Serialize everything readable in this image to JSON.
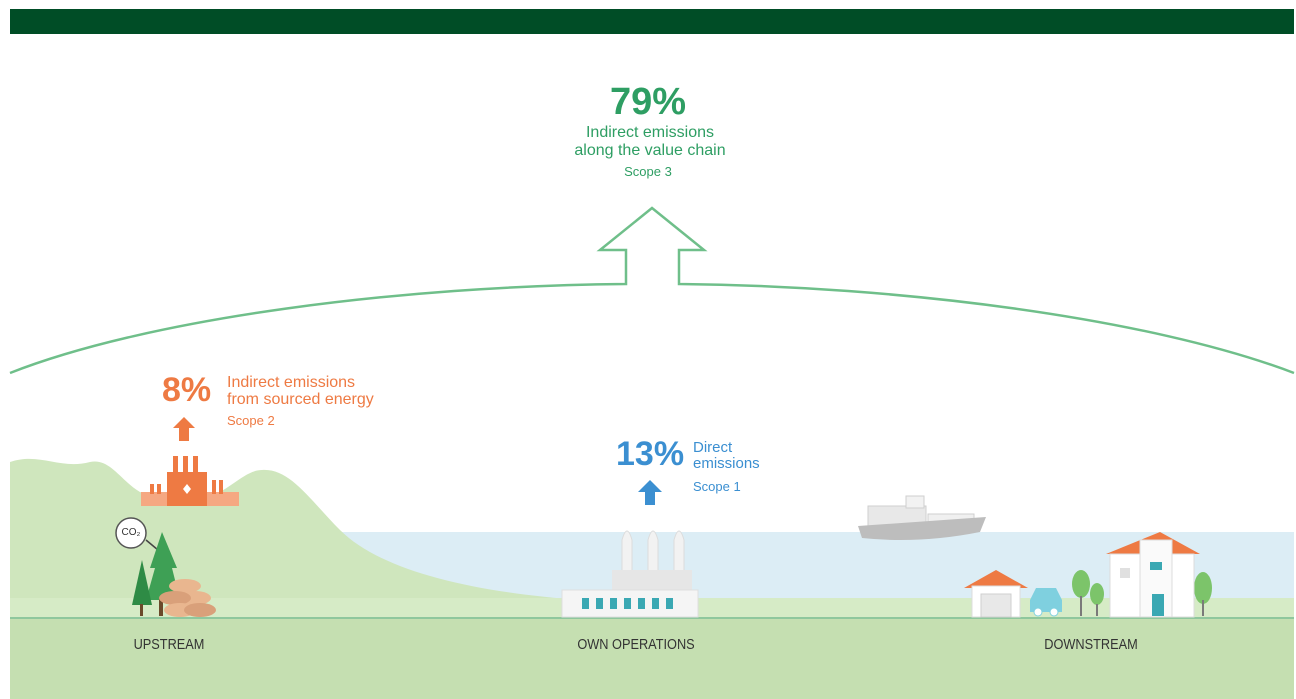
{
  "scope3": {
    "percent": "79%",
    "line1": "Indirect emissions",
    "line2": "along the value chain",
    "scope": "Scope 3",
    "color": "#2e9e63"
  },
  "scope2": {
    "percent": "8%",
    "line1": "Indirect emissions",
    "line2": "from sourced energy",
    "scope": "Scope 2",
    "color": "#ee7a43"
  },
  "scope1": {
    "percent": "13%",
    "line1": "Direct",
    "line2": "emissions",
    "scope": "Scope 1",
    "color": "#3b8fd1"
  },
  "zones": {
    "upstream": "UPSTREAM",
    "own": "OWN OPERATIONS",
    "downstream": "DOWNSTREAM"
  },
  "co2_label": "CO₂",
  "colors": {
    "header": "#004d26",
    "ground": "#c5dfb1",
    "hill": "#cfe6bd",
    "water": "#dcedf5"
  }
}
